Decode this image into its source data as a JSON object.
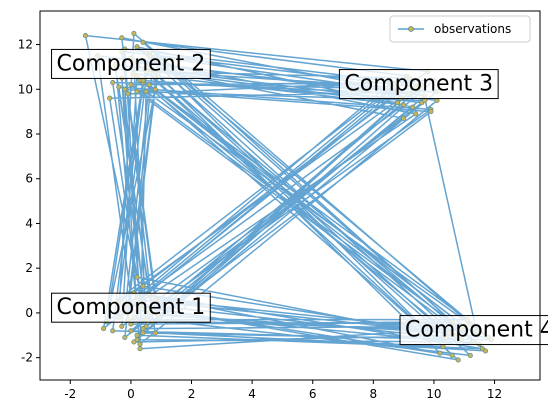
{
  "chart_data": {
    "type": "line",
    "title": "",
    "xlabel": "",
    "ylabel": "",
    "xlim": [
      -3.0,
      13.5
    ],
    "ylim": [
      -3.0,
      13.5
    ],
    "x_ticks": [
      -2,
      0,
      2,
      4,
      6,
      8,
      10,
      12
    ],
    "y_ticks": [
      -2,
      0,
      2,
      4,
      6,
      8,
      10,
      12
    ],
    "grid": false,
    "legend": {
      "position": "top-right",
      "entries": [
        "observations"
      ]
    },
    "series": [
      {
        "name": "observations",
        "color": "#5b9fd0",
        "marker_face": "#c8b45a",
        "marker_edge": "#5c8c8c",
        "points": [
          [
            0.2,
            0.1
          ],
          [
            -0.3,
            10.5
          ],
          [
            0.5,
            -0.6
          ],
          [
            0.1,
            11.2
          ],
          [
            9.2,
            9.8
          ],
          [
            0.4,
            10.3
          ],
          [
            -0.6,
            -0.8
          ],
          [
            10.9,
            -1.2
          ],
          [
            0.3,
            0.4
          ],
          [
            -0.2,
            11.8
          ],
          [
            9.6,
            10.2
          ],
          [
            11.4,
            -0.8
          ],
          [
            -0.1,
            -0.3
          ],
          [
            0.7,
            10.8
          ],
          [
            8.8,
            9.4
          ],
          [
            0.2,
            -1.0
          ],
          [
            11.6,
            -1.6
          ],
          [
            0.6,
            0.8
          ],
          [
            -0.4,
            10.1
          ],
          [
            9.9,
            9.1
          ],
          [
            0.0,
            -0.5
          ],
          [
            10.6,
            -0.4
          ],
          [
            0.4,
            12.1
          ],
          [
            9.1,
            10.6
          ],
          [
            -0.7,
            0.3
          ],
          [
            0.9,
            10.6
          ],
          [
            11.2,
            -1.9
          ],
          [
            0.1,
            -0.2
          ],
          [
            -1.1,
            11.5
          ],
          [
            10.1,
            9.5
          ],
          [
            0.3,
            -1.4
          ],
          [
            0.5,
            9.9
          ],
          [
            11.8,
            -1.1
          ],
          [
            0.2,
            0.6
          ],
          [
            8.7,
            10.1
          ],
          [
            -0.5,
            10.9
          ],
          [
            0.8,
            -0.9
          ],
          [
            10.3,
            -1.5
          ],
          [
            0.0,
            11.4
          ],
          [
            9.4,
            8.9
          ],
          [
            -0.2,
            0.0
          ],
          [
            0.6,
            10.2
          ],
          [
            11.0,
            -0.6
          ],
          [
            0.4,
            -0.7
          ],
          [
            9.7,
            9.7
          ],
          [
            -0.3,
            12.3
          ],
          [
            0.7,
            0.2
          ],
          [
            10.8,
            -2.1
          ],
          [
            0.1,
            10.7
          ],
          [
            9.0,
            9.3
          ],
          [
            -0.8,
            -0.4
          ],
          [
            0.5,
            11.0
          ],
          [
            11.3,
            -1.3
          ],
          [
            0.2,
            -1.2
          ],
          [
            10.0,
            10.4
          ],
          [
            -0.1,
            9.8
          ],
          [
            0.9,
            -0.1
          ],
          [
            10.5,
            -0.9
          ],
          [
            0.3,
            10.4
          ],
          [
            8.9,
            9.6
          ],
          [
            -0.4,
            0.5
          ],
          [
            0.6,
            11.6
          ],
          [
            11.7,
            -1.7
          ],
          [
            0.0,
            -0.8
          ],
          [
            9.5,
            10.0
          ],
          [
            -0.6,
            10.3
          ],
          [
            0.4,
            1.2
          ],
          [
            10.7,
            -1.0
          ],
          [
            0.2,
            11.9
          ],
          [
            9.3,
            9.2
          ],
          [
            -0.2,
            -1.1
          ],
          [
            0.8,
            10.0
          ],
          [
            11.1,
            -0.3
          ],
          [
            0.5,
            -0.3
          ],
          [
            -1.5,
            12.4
          ],
          [
            9.8,
            10.8
          ],
          [
            0.1,
            0.9
          ],
          [
            10.2,
            -1.8
          ],
          [
            0.7,
            10.9
          ],
          [
            9.0,
            8.7
          ],
          [
            -0.3,
            -0.6
          ],
          [
            0.2,
            10.6
          ],
          [
            11.5,
            -1.4
          ],
          [
            0.6,
            0.0
          ],
          [
            9.6,
            9.4
          ],
          [
            -0.5,
            11.1
          ],
          [
            0.3,
            -1.6
          ],
          [
            10.9,
            -0.7
          ],
          [
            0.0,
            10.2
          ],
          [
            8.6,
            10.3
          ],
          [
            -0.1,
            0.4
          ],
          [
            0.9,
            11.3
          ],
          [
            11.9,
            -1.2
          ],
          [
            0.4,
            -0.9
          ],
          [
            10.1,
            9.9
          ],
          [
            -0.7,
            9.6
          ],
          [
            0.2,
            1.6
          ],
          [
            10.4,
            -1.1
          ],
          [
            0.5,
            10.8
          ],
          [
            9.2,
            10.5
          ],
          [
            -0.4,
            -0.2
          ],
          [
            0.1,
            12.5
          ],
          [
            11.2,
            -0.5
          ],
          [
            0.7,
            -0.4
          ],
          [
            9.9,
            9.0
          ],
          [
            -0.2,
            10.0
          ],
          [
            0.3,
            0.3
          ],
          [
            10.6,
            -1.9
          ],
          [
            0.6,
            11.5
          ],
          [
            8.8,
            9.9
          ],
          [
            -0.9,
            -0.7
          ],
          [
            0.4,
            10.4
          ],
          [
            11.4,
            -1.0
          ],
          [
            0.1,
            -1.3
          ],
          [
            9.4,
            10.1
          ],
          [
            -0.3,
            11.7
          ],
          [
            0.8,
            0.6
          ],
          [
            10.8,
            -0.8
          ],
          [
            0.2,
            9.9
          ],
          [
            9.7,
            9.5
          ]
        ]
      }
    ],
    "annotations": [
      {
        "text": "Component 1",
        "x": 0.0,
        "y": 0.3
      },
      {
        "text": "Component 2",
        "x": 0.0,
        "y": 11.2
      },
      {
        "text": "Component 3",
        "x": 9.5,
        "y": 10.3
      },
      {
        "text": "Component 4",
        "x": 11.5,
        "y": -0.7
      }
    ]
  }
}
